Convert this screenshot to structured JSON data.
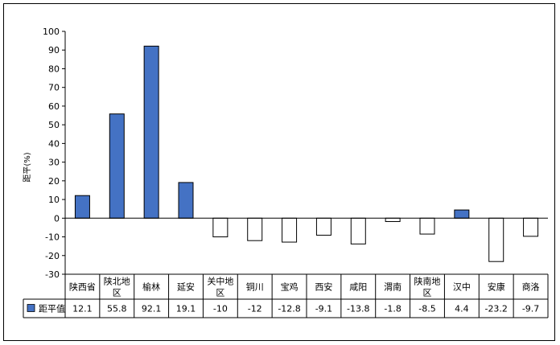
{
  "chart_data": {
    "type": "bar",
    "ylabel": "距平(%)",
    "ylim": [
      -30,
      100
    ],
    "ytick_step": 10,
    "grid": false,
    "legend_position": "table-left",
    "categories": [
      [
        "陕西省"
      ],
      [
        "陕北地",
        "区"
      ],
      [
        "榆林"
      ],
      [
        "延安"
      ],
      [
        "关中地",
        "区"
      ],
      [
        "铜川"
      ],
      [
        "宝鸡"
      ],
      [
        "西安"
      ],
      [
        "咸阳"
      ],
      [
        "渭南"
      ],
      [
        "陕南地",
        "区"
      ],
      [
        "汉中"
      ],
      [
        "安康"
      ],
      [
        "商洛"
      ]
    ],
    "series": [
      {
        "name": "距平值",
        "values": [
          12.1,
          55.8,
          92.1,
          19.1,
          -10,
          -12,
          -12.8,
          -9.1,
          -13.8,
          -1.8,
          -8.5,
          4.4,
          -23.2,
          -9.7
        ],
        "labels": [
          "12.1",
          "55.8",
          "92.1",
          "19.1",
          "-10",
          "-12",
          "-12.8",
          "-9.1",
          "-13.8",
          "-1.8",
          "-8.5",
          "4.4",
          "-23.2",
          "-9.7"
        ],
        "color_positive": "#4472c4",
        "color_negative": "#ffffff"
      }
    ]
  }
}
